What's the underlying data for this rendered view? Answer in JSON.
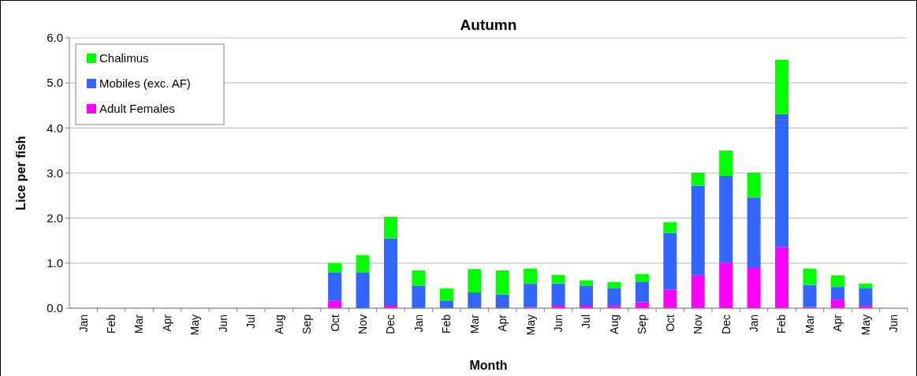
{
  "chart_data": {
    "type": "bar",
    "title": "Autumn",
    "xlabel": "Month",
    "ylabel": "Lice per fish",
    "stacked": true,
    "categories": [
      "Jan",
      "Feb",
      "Mar",
      "Apr",
      "May",
      "Jun",
      "Jul",
      "Aug",
      "Sep",
      "Oct",
      "Nov",
      "Dec",
      "Jan",
      "Feb",
      "Mar",
      "Apr",
      "May",
      "Jun",
      "Jul",
      "Aug",
      "Sep",
      "Oct",
      "Nov",
      "Dec",
      "Jan",
      "Feb",
      "Mar",
      "Apr",
      "May",
      "Jun"
    ],
    "series": [
      {
        "name": "Adult Females",
        "color": "#ff00ff",
        "values": [
          null,
          null,
          null,
          null,
          null,
          null,
          null,
          null,
          null,
          0.17,
          0,
          0.07,
          0,
          0,
          0,
          0,
          0.03,
          0.07,
          0.07,
          0.05,
          0.13,
          0.41,
          0.72,
          1.01,
          0.91,
          1.36,
          0.03,
          0.19,
          0.05,
          null
        ]
      },
      {
        "name": "Mobiles (exc. AF)",
        "color": "#3366ff",
        "values": [
          null,
          null,
          null,
          null,
          null,
          null,
          null,
          null,
          null,
          0.63,
          0.8,
          1.48,
          0.5,
          0.17,
          0.35,
          0.3,
          0.51,
          0.48,
          0.43,
          0.4,
          0.46,
          1.26,
          2.0,
          1.93,
          1.55,
          2.95,
          0.48,
          0.28,
          0.4,
          null
        ]
      },
      {
        "name": "Chalimus",
        "color": "#00ff00",
        "values": [
          null,
          null,
          null,
          null,
          null,
          null,
          null,
          null,
          null,
          0.2,
          0.38,
          0.48,
          0.34,
          0.27,
          0.52,
          0.54,
          0.34,
          0.19,
          0.12,
          0.13,
          0.17,
          0.24,
          0.29,
          0.56,
          0.55,
          1.2,
          0.37,
          0.26,
          0.1,
          null
        ]
      }
    ],
    "ylim": [
      0,
      6
    ],
    "yticks": [
      {
        "value": 0,
        "label": "0.0"
      },
      {
        "value": 1,
        "label": "1.0"
      },
      {
        "value": 2,
        "label": "2.0"
      },
      {
        "value": 3,
        "label": "3.0"
      },
      {
        "value": 4,
        "label": "4.0"
      },
      {
        "value": 5,
        "label": "5.0"
      },
      {
        "value": 6,
        "label": "6.0"
      }
    ],
    "grid": "y",
    "legend": "top left"
  }
}
